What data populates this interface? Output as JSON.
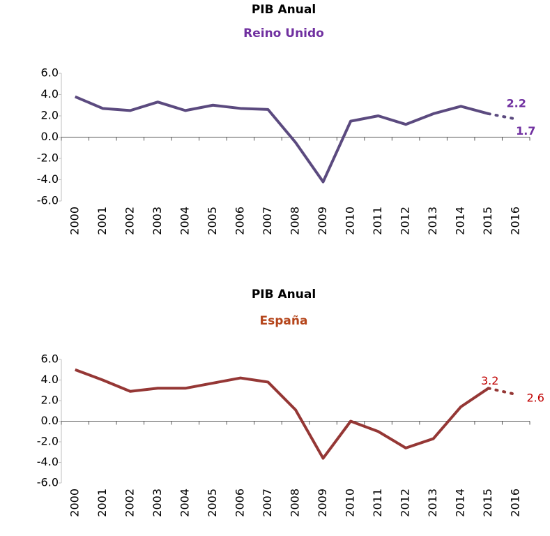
{
  "chart_data": [
    {
      "type": "line",
      "title": "PIB Anual",
      "subtitle": "Reino Unido",
      "subtitle_color": "#7030a0",
      "categories": [
        "2000",
        "2001",
        "2002",
        "2003",
        "2004",
        "2005",
        "2006",
        "2007",
        "2008",
        "2009",
        "2010",
        "2011",
        "2012",
        "2013",
        "2014",
        "2015",
        "2016"
      ],
      "values": [
        3.8,
        2.7,
        2.5,
        3.3,
        2.5,
        3.0,
        2.7,
        2.6,
        -0.5,
        -4.2,
        1.5,
        2.0,
        1.2,
        2.2,
        2.9,
        2.2,
        1.7
      ],
      "value_labels": [
        null,
        null,
        null,
        null,
        null,
        null,
        null,
        null,
        null,
        null,
        null,
        null,
        null,
        null,
        null,
        "2.2",
        "1.7"
      ],
      "label_color": "#7030a0",
      "color": "#5b4a7f",
      "forecast_start": "2015",
      "ylim": [
        -6,
        6
      ],
      "yticks": [
        {
          "value": -6,
          "label": "-6.0"
        },
        {
          "value": -4,
          "label": "-4.0"
        },
        {
          "value": -2,
          "label": "-2.0"
        },
        {
          "value": 0,
          "label": "0.0"
        },
        {
          "value": 2,
          "label": "2.0"
        },
        {
          "value": 4,
          "label": "4.0"
        },
        {
          "value": 6,
          "label": "6.0"
        }
      ]
    },
    {
      "type": "line",
      "title": "PIB Anual",
      "subtitle": "España",
      "subtitle_color": "#b5451b",
      "categories": [
        "2000",
        "2001",
        "2002",
        "2003",
        "2004",
        "2005",
        "2006",
        "2007",
        "2008",
        "2009",
        "2010",
        "2011",
        "2012",
        "2013",
        "2014",
        "2015",
        "2016"
      ],
      "values": [
        5.0,
        4.0,
        2.9,
        3.2,
        3.2,
        3.7,
        4.2,
        3.8,
        1.1,
        -3.6,
        0.0,
        -1.0,
        -2.6,
        -1.7,
        1.4,
        3.2,
        2.6
      ],
      "value_labels": [
        null,
        null,
        null,
        null,
        null,
        null,
        null,
        null,
        null,
        null,
        null,
        null,
        null,
        null,
        null,
        "3.2",
        "2.6"
      ],
      "label_color": "#c00000",
      "color": "#953735",
      "forecast_start": "2015",
      "ylim": [
        -6,
        6
      ],
      "yticks": [
        {
          "value": -6,
          "label": "-6.0"
        },
        {
          "value": -4,
          "label": "-4.0"
        },
        {
          "value": -2,
          "label": "-2.0"
        },
        {
          "value": 0,
          "label": "0.0"
        },
        {
          "value": 2,
          "label": "2.0"
        },
        {
          "value": 4,
          "label": "4.0"
        },
        {
          "value": 6,
          "label": "6.0"
        }
      ]
    }
  ]
}
